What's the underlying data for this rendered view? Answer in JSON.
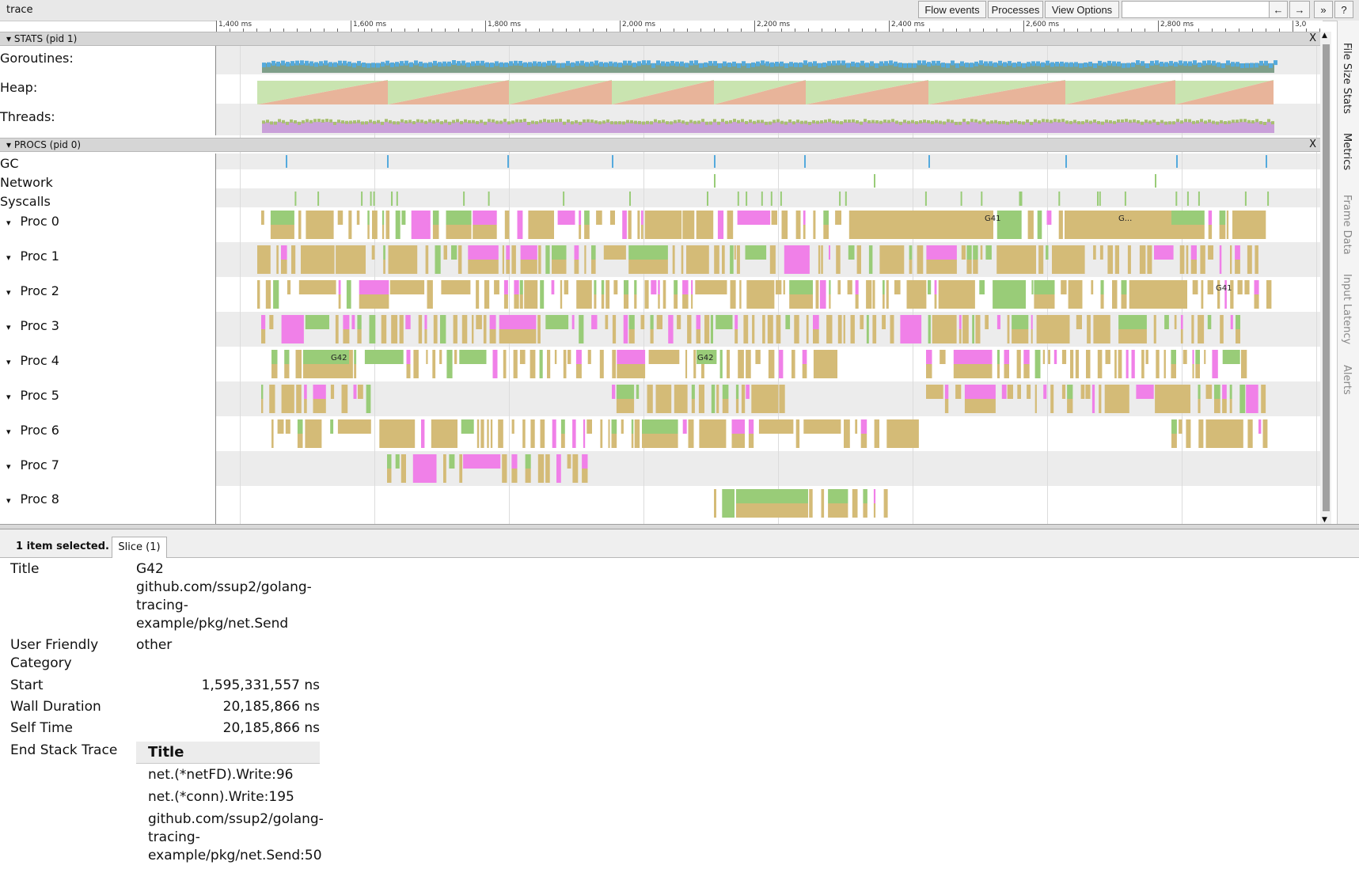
{
  "app": {
    "title": "trace"
  },
  "toolbar": {
    "flow_events": "Flow events",
    "processes": "Processes",
    "view_options": "View Options",
    "search_placeholder": "",
    "prev": "←",
    "next": "→",
    "more": "»",
    "help": "?"
  },
  "ruler": {
    "labels": [
      "1,400 ms",
      "1,600 ms",
      "1,800 ms",
      "2,000 ms",
      "2,200 ms",
      "2,400 ms",
      "2,600 ms",
      "2,800 ms",
      "3,0"
    ]
  },
  "stats": {
    "header": "STATS (pid 1)",
    "close": "X",
    "counters": [
      "Goroutines:",
      "Heap:",
      "Threads:"
    ]
  },
  "procs": {
    "header": "PROCS (pid 0)",
    "close": "X",
    "rows": [
      "GC",
      "Network",
      "Syscalls"
    ],
    "procs": [
      "Proc 0",
      "Proc 1",
      "Proc 2",
      "Proc 3",
      "Proc 4",
      "Proc 5",
      "Proc 6",
      "Proc 7",
      "Proc 8"
    ],
    "slice_labels": [
      "G41",
      "G...",
      "G41",
      "G42",
      "G42"
    ]
  },
  "side_tabs": [
    "File Size Stats",
    "Metrics",
    "Frame Data",
    "Input Latency",
    "Alerts"
  ],
  "colors": {
    "tan": "#d4bb77",
    "green": "#99cc78",
    "pink": "#f080e8",
    "blue": "#55aadd",
    "heap_red": "#e8b49a",
    "heap_green": "#c9e4b0",
    "threads_purple": "#c9a0d9"
  },
  "selection": {
    "count": "1 item selected.",
    "tab": "Slice (1)"
  },
  "details": {
    "title_label": "Title",
    "title_line1": "G42",
    "title_line2": "github.com/ssup2/golang-",
    "title_line3": "tracing-",
    "title_line4": "example/pkg/net.Send",
    "category_label_1": "User Friendly",
    "category_label_2": "Category",
    "category_value": "other",
    "start_label": "Start",
    "start_value": "1,595,331,557 ns",
    "wall_label": "Wall Duration",
    "wall_value": "20,185,866 ns",
    "self_label": "Self Time",
    "self_value": "20,185,866 ns",
    "stack_label": "End Stack Trace",
    "stack_header": "Title",
    "stack_1": "net.(*netFD).Write:96",
    "stack_2": "net.(*conn).Write:195",
    "stack_3a": "github.com/ssup2/golang-",
    "stack_3b": "tracing-",
    "stack_3c": "example/pkg/net.Send:50"
  }
}
